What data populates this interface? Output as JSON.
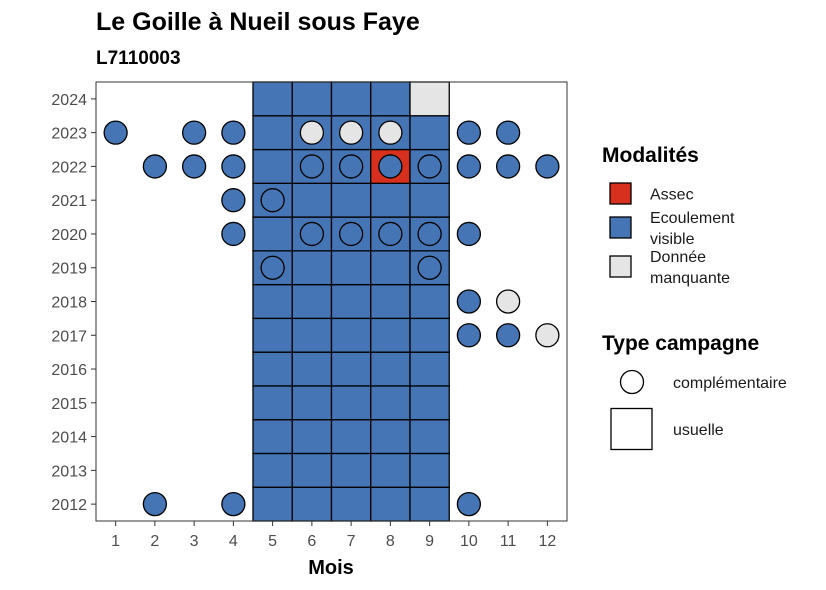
{
  "chart_data": {
    "type": "heatmap",
    "title": "Le Goille à Nueil sous Faye",
    "subtitle": "L7110003",
    "xlabel": "Mois",
    "ylabel": "",
    "x_ticks": [
      1,
      2,
      3,
      4,
      5,
      6,
      7,
      8,
      9,
      10,
      11,
      12
    ],
    "y_ticks": [
      2012,
      2013,
      2014,
      2015,
      2016,
      2017,
      2018,
      2019,
      2020,
      2021,
      2022,
      2023,
      2024
    ],
    "xlim": [
      0.5,
      12.5
    ],
    "ylim": [
      2011.5,
      2024.5
    ],
    "colors": {
      "Assec": "#d7301f",
      "Ecoulement visible": "#4575b4",
      "Donnée manquante": "#e5e5e5"
    },
    "legend": {
      "modalites_title": "Modalités",
      "modalites": [
        {
          "key": "Assec",
          "lines": [
            "Assec"
          ]
        },
        {
          "key": "Ecoulement visible",
          "lines": [
            "Ecoulement",
            "visible"
          ]
        },
        {
          "key": "Donnée manquante",
          "lines": [
            "Donnée",
            "manquante"
          ]
        }
      ],
      "type_title": "Type campagne",
      "types": [
        {
          "key": "complementaire",
          "label": "complémentaire",
          "shape": "circle"
        },
        {
          "key": "usuelle",
          "label": "usuelle",
          "shape": "square"
        }
      ]
    },
    "usuelle": {
      "months": [
        5,
        6,
        7,
        8,
        9
      ],
      "years_default": [
        2012,
        2013,
        2014,
        2015,
        2016,
        2017,
        2018,
        2019,
        2020,
        2021,
        2022,
        2023
      ],
      "default_value": "Ecoulement visible",
      "exceptions": [
        {
          "month": 8,
          "year": 2022,
          "value": "Assec"
        }
      ],
      "extra": [
        {
          "month": 5,
          "year": 2024,
          "value": "Ecoulement visible"
        },
        {
          "month": 6,
          "year": 2024,
          "value": "Ecoulement visible"
        },
        {
          "month": 7,
          "year": 2024,
          "value": "Ecoulement visible"
        },
        {
          "month": 8,
          "year": 2024,
          "value": "Ecoulement visible"
        },
        {
          "month": 9,
          "year": 2024,
          "value": "Donnée manquante"
        }
      ]
    },
    "complementaire": [
      {
        "month": 1,
        "year": 2023,
        "value": "Ecoulement visible"
      },
      {
        "month": 3,
        "year": 2023,
        "value": "Ecoulement visible"
      },
      {
        "month": 4,
        "year": 2023,
        "value": "Ecoulement visible"
      },
      {
        "month": 6,
        "year": 2023,
        "value": "Donnée manquante"
      },
      {
        "month": 7,
        "year": 2023,
        "value": "Donnée manquante"
      },
      {
        "month": 8,
        "year": 2023,
        "value": "Donnée manquante"
      },
      {
        "month": 10,
        "year": 2023,
        "value": "Ecoulement visible"
      },
      {
        "month": 11,
        "year": 2023,
        "value": "Ecoulement visible"
      },
      {
        "month": 2,
        "year": 2022,
        "value": "Ecoulement visible"
      },
      {
        "month": 3,
        "year": 2022,
        "value": "Ecoulement visible"
      },
      {
        "month": 4,
        "year": 2022,
        "value": "Ecoulement visible"
      },
      {
        "month": 6,
        "year": 2022,
        "value": "Ecoulement visible"
      },
      {
        "month": 7,
        "year": 2022,
        "value": "Ecoulement visible"
      },
      {
        "month": 8,
        "year": 2022,
        "value": "Ecoulement visible"
      },
      {
        "month": 9,
        "year": 2022,
        "value": "Ecoulement visible"
      },
      {
        "month": 10,
        "year": 2022,
        "value": "Ecoulement visible"
      },
      {
        "month": 11,
        "year": 2022,
        "value": "Ecoulement visible"
      },
      {
        "month": 12,
        "year": 2022,
        "value": "Ecoulement visible"
      },
      {
        "month": 4,
        "year": 2021,
        "value": "Ecoulement visible"
      },
      {
        "month": 5,
        "year": 2021,
        "value": "Ecoulement visible"
      },
      {
        "month": 4,
        "year": 2020,
        "value": "Ecoulement visible"
      },
      {
        "month": 6,
        "year": 2020,
        "value": "Ecoulement visible"
      },
      {
        "month": 7,
        "year": 2020,
        "value": "Ecoulement visible"
      },
      {
        "month": 8,
        "year": 2020,
        "value": "Ecoulement visible"
      },
      {
        "month": 9,
        "year": 2020,
        "value": "Ecoulement visible"
      },
      {
        "month": 10,
        "year": 2020,
        "value": "Ecoulement visible"
      },
      {
        "month": 5,
        "year": 2019,
        "value": "Ecoulement visible"
      },
      {
        "month": 9,
        "year": 2019,
        "value": "Ecoulement visible"
      },
      {
        "month": 10,
        "year": 2018,
        "value": "Ecoulement visible"
      },
      {
        "month": 11,
        "year": 2018,
        "value": "Donnée manquante"
      },
      {
        "month": 10,
        "year": 2017,
        "value": "Ecoulement visible"
      },
      {
        "month": 11,
        "year": 2017,
        "value": "Ecoulement visible"
      },
      {
        "month": 12,
        "year": 2017,
        "value": "Donnée manquante"
      },
      {
        "month": 2,
        "year": 2012,
        "value": "Ecoulement visible"
      },
      {
        "month": 4,
        "year": 2012,
        "value": "Ecoulement visible"
      },
      {
        "month": 10,
        "year": 2012,
        "value": "Ecoulement visible"
      }
    ]
  }
}
